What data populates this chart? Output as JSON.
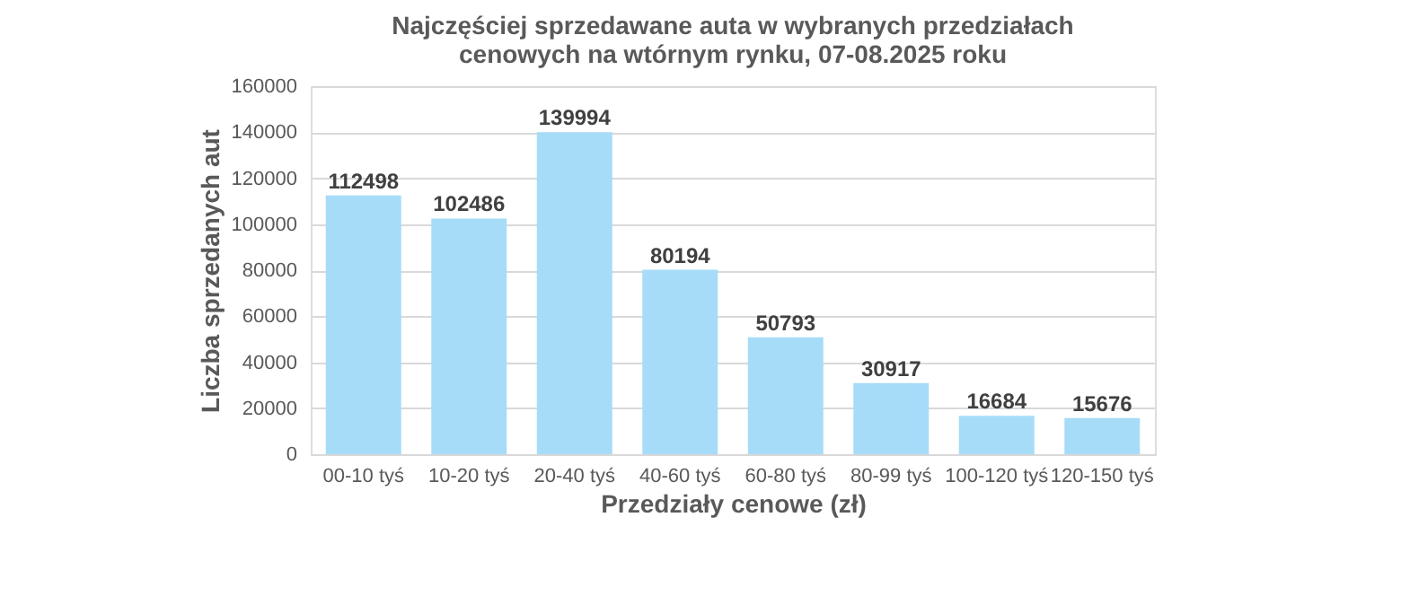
{
  "chart_data": {
    "type": "bar",
    "title": "Najczęściej sprzedawane auta w wybranych  przedziałach\ncenowych na wtórnym rynku, 07-08.2025 roku",
    "xlabel": "Przedziały cenowe (zł)",
    "ylabel": "Liczba sprzedanych aut",
    "categories": [
      "00-10 tyś",
      "10-20 tyś",
      "20-40 tyś",
      "40-60 tyś",
      "60-80 tyś",
      "80-99 tyś",
      "100-120 tyś",
      "120-150 tyś"
    ],
    "values": [
      112498,
      102486,
      139994,
      80194,
      50793,
      30917,
      16684,
      15676
    ],
    "color": "#a6dcf8",
    "ylim": [
      0,
      160000
    ],
    "yticks": [
      0,
      20000,
      40000,
      60000,
      80000,
      100000,
      120000,
      140000,
      160000
    ],
    "grid": "y",
    "data_labels": true
  }
}
